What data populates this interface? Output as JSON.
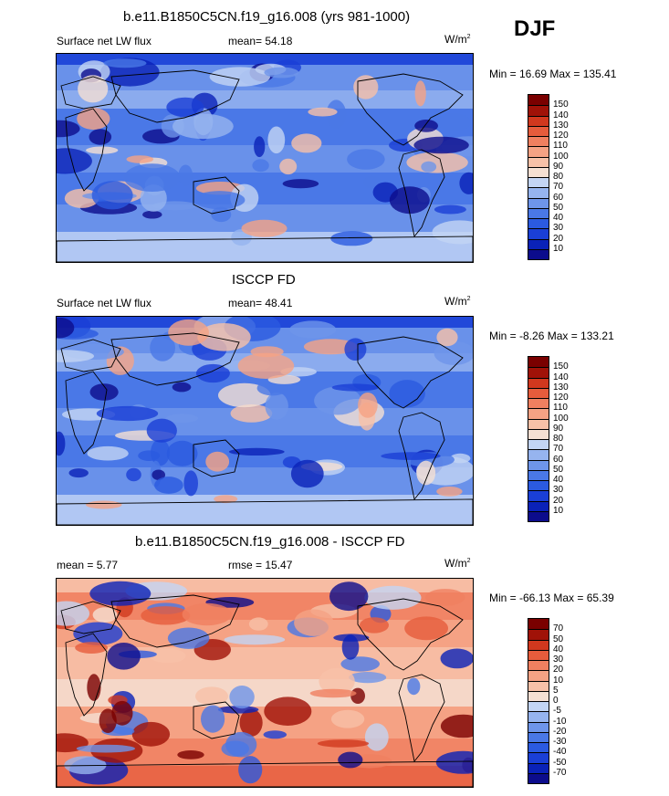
{
  "header": {
    "season": "DJF"
  },
  "panels": [
    {
      "title": "b.e11.B1850C5CN.f19_g16.008 (yrs 981-1000)",
      "left_label": "Surface net LW flux",
      "center_label": "mean=  54.18",
      "units_base": "W/m",
      "units_exp": "2",
      "minmax": "Min =  16.69 Max = 135.41",
      "palette": "abs",
      "colorbar_labels": [
        "150",
        "140",
        "130",
        "120",
        "110",
        "100",
        "90",
        "80",
        "70",
        "60",
        "50",
        "40",
        "30",
        "20",
        "10"
      ]
    },
    {
      "title": "ISCCP FD",
      "left_label": "Surface net LW flux",
      "center_label": "mean=  48.41",
      "units_base": "W/m",
      "units_exp": "2",
      "minmax": "Min =  -8.26 Max = 133.21",
      "palette": "abs",
      "colorbar_labels": [
        "150",
        "140",
        "130",
        "120",
        "110",
        "100",
        "90",
        "80",
        "70",
        "60",
        "50",
        "40",
        "30",
        "20",
        "10"
      ]
    },
    {
      "title": "b.e11.B1850C5CN.f19_g16.008 - ISCCP FD",
      "left_label": "mean =  5.77",
      "center_label": "rmse =  15.47",
      "units_base": "W/m",
      "units_exp": "2",
      "minmax": "Min = -66.13 Max =  65.39",
      "palette": "diff",
      "colorbar_labels": [
        "70",
        "50",
        "40",
        "30",
        "20",
        "10",
        "5",
        "0",
        "-5",
        "-10",
        "-20",
        "-30",
        "-40",
        "-50",
        "-70"
      ]
    }
  ],
  "colors": {
    "abs_palette": [
      "#0c0c8c",
      "#0a22b8",
      "#1a3fd6",
      "#2b5ae0",
      "#4a78e6",
      "#6e95ea",
      "#96b4ef",
      "#c3d5f4",
      "#f5e0d3",
      "#f7c1a8",
      "#f5a284",
      "#f08060",
      "#e65c3c",
      "#d1381e",
      "#a01208",
      "#7a0000"
    ],
    "diff_palette": [
      "#0c0c8c",
      "#0a22b8",
      "#1a3fd6",
      "#2b5ae0",
      "#4a78e6",
      "#6e95ea",
      "#96b4ef",
      "#c3d5f4",
      "#f5e0d3",
      "#f7c1a8",
      "#f5a284",
      "#f08060",
      "#e65c3c",
      "#d1381e",
      "#a01208",
      "#7a0000"
    ]
  }
}
